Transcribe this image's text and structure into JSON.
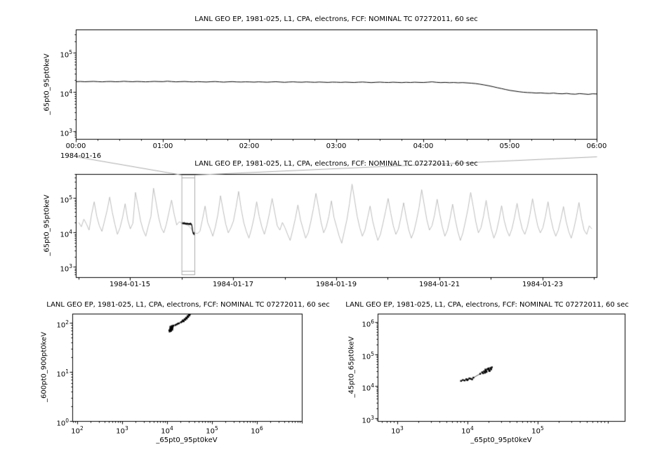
{
  "palette": {
    "background": "#ffffff",
    "series": "#000000",
    "context_series": "#bdbdbd",
    "zoom_overlay": "#aaaaaa",
    "frame": "#000000"
  },
  "chart_data": [
    {
      "id": "top_zoom_timeseries",
      "type": "line",
      "yscale": "log",
      "title": "LANL GEO EP, 1981-025, L1, CPA, electrons, FCF: NOMINAL TC 07272011, 60 sec",
      "ylabel": "_65pt0_95pt0keV",
      "start_date": "1984-01-16",
      "x_unit": "hours",
      "x_start": 0,
      "x_step": 0.05,
      "xlim_hour": [
        0,
        6
      ],
      "x_tick_hours": [
        0,
        1,
        2,
        3,
        4,
        5,
        6
      ],
      "x_tick_labels": [
        "00:00",
        "01:00",
        "02:00",
        "03:00",
        "04:00",
        "05:00",
        "06:00"
      ],
      "ylim_exp": [
        2.8,
        5.6
      ],
      "y_tick_exponents": [
        3,
        4,
        5
      ],
      "values": [
        18800,
        19000,
        18700,
        18900,
        19100,
        18800,
        18600,
        18900,
        19000,
        18700,
        18800,
        19200,
        18900,
        18700,
        19000,
        18800,
        18600,
        18800,
        19100,
        18900,
        18800,
        19300,
        18900,
        18600,
        18800,
        19000,
        18700,
        18500,
        18800,
        18600,
        18400,
        18700,
        18900,
        18600,
        18300,
        18600,
        18800,
        18500,
        18400,
        18600,
        18500,
        18300,
        18600,
        18400,
        18200,
        18500,
        18700,
        18400,
        18100,
        18400,
        18600,
        18300,
        18200,
        18500,
        18300,
        18100,
        18400,
        18200,
        18000,
        18300,
        18200,
        18000,
        18300,
        18100,
        17900,
        18200,
        18400,
        18100,
        17800,
        18100,
        18300,
        18000,
        17900,
        18200,
        18000,
        17800,
        18100,
        17900,
        18200,
        18000,
        17900,
        18200,
        18600,
        18100,
        17800,
        18000,
        17700,
        17900,
        17600,
        17800,
        17500,
        17200,
        16800,
        16200,
        15500,
        14800,
        14000,
        13200,
        12500,
        11800,
        11200,
        10800,
        10400,
        10100,
        9900,
        9800,
        9600,
        9700,
        9500,
        9400,
        9600,
        9300,
        9200,
        9400,
        9100,
        9000,
        9300,
        9100,
        8900,
        9200,
        9100
      ]
    },
    {
      "id": "context_timeseries",
      "type": "line",
      "yscale": "log",
      "title": "LANL GEO EP, 1981-025, L1, CPA, electrons, FCF: NOMINAL TC 07272011, 60 sec",
      "ylabel": "_65pt0_95pt0keV",
      "x_unit": "day of 1984-01",
      "x_start": 14.0,
      "x_step": 0.05,
      "xlim_day": [
        13.95,
        24.05
      ],
      "x_tick_days": [
        15,
        17,
        19,
        21,
        23
      ],
      "x_tick_labels": [
        "1984-01-15",
        "1984-01-17",
        "1984-01-19",
        "1984-01-21",
        "1984-01-23"
      ],
      "ylim_exp": [
        2.7,
        5.7
      ],
      "y_tick_exponents": [
        3,
        4,
        5
      ],
      "highlight_day": [
        16.0,
        16.25
      ],
      "values": [
        20000,
        15000,
        25000,
        18000,
        12000,
        35000,
        80000,
        30000,
        16000,
        11000,
        22000,
        45000,
        110000,
        40000,
        18000,
        9000,
        14000,
        28000,
        70000,
        24000,
        13000,
        19000,
        150000,
        60000,
        22000,
        12000,
        8000,
        16000,
        30000,
        200000,
        75000,
        28000,
        14000,
        10000,
        18000,
        40000,
        90000,
        35000,
        17000,
        21000,
        19000,
        18000,
        17000,
        15000,
        12000,
        10000,
        9500,
        11000,
        25000,
        60000,
        20000,
        13000,
        8000,
        15000,
        35000,
        120000,
        45000,
        18000,
        10000,
        14000,
        22000,
        55000,
        160000,
        50000,
        20000,
        11000,
        7000,
        13000,
        28000,
        80000,
        30000,
        15000,
        9000,
        17000,
        38000,
        100000,
        40000,
        16000,
        12000,
        20000,
        14000,
        9000,
        6000,
        12000,
        26000,
        65000,
        24000,
        13000,
        7000,
        10000,
        21000,
        50000,
        140000,
        55000,
        20000,
        10000,
        15000,
        30000,
        85000,
        28000,
        15000,
        8000,
        5000,
        11000,
        24000,
        70000,
        260000,
        90000,
        30000,
        14000,
        8000,
        12000,
        27000,
        60000,
        22000,
        11000,
        6000,
        9000,
        19000,
        42000,
        100000,
        38000,
        16000,
        9000,
        13000,
        29000,
        75000,
        28000,
        12000,
        7000,
        11000,
        23000,
        55000,
        180000,
        65000,
        24000,
        12000,
        16000,
        33000,
        95000,
        36000,
        15000,
        8000,
        12000,
        26000,
        68000,
        25000,
        11000,
        6000,
        10000,
        22000,
        52000,
        150000,
        58000,
        21000,
        10000,
        14000,
        31000,
        88000,
        30000,
        13000,
        7000,
        11000,
        24000,
        62000,
        23000,
        12000,
        8000,
        13000,
        28000,
        72000,
        27000,
        13000,
        9000,
        15000,
        34000,
        98000,
        37000,
        16000,
        10000,
        14000,
        30000,
        80000,
        28000,
        13000,
        8000,
        12000,
        25000,
        58000,
        22000,
        11000,
        7000,
        13000,
        29000,
        76000,
        26000,
        12000,
        9000,
        16000,
        13000
      ]
    },
    {
      "id": "scatter_600_900_vs_65_95",
      "type": "scatter",
      "xscale": "log",
      "yscale": "log",
      "title": "LANL GEO EP, 1981-025, L1, CPA, electrons, FCF: NOMINAL TC 07272011, 60 sec",
      "xlabel": "_65pt0_95pt0keV",
      "ylabel": "_600pt0_900pt0keV",
      "xlim_exp": [
        1.89,
        7.0
      ],
      "ylim_exp": [
        0,
        2.19
      ],
      "x_tick_exponents": [
        2,
        3,
        4,
        5,
        6
      ],
      "y_tick_exponents": [
        0,
        1,
        2
      ],
      "x": [
        11000,
        11500,
        11200,
        12000,
        11800,
        12300,
        11600,
        12500,
        12200,
        12800,
        11900,
        13000,
        12400,
        12700,
        13500,
        12600,
        13200,
        15000,
        16000,
        17000,
        18000,
        20000,
        21000,
        22000,
        23000,
        22500,
        24000,
        25000,
        24500,
        26000,
        26500,
        27000,
        28000,
        28500,
        29000,
        30000,
        31000,
        32000,
        33000
      ],
      "y": [
        72,
        78,
        68,
        70,
        75,
        82,
        85,
        88,
        79,
        74,
        71,
        80,
        77,
        83,
        90,
        76,
        86,
        92,
        95,
        98,
        100,
        105,
        108,
        115,
        110,
        112,
        120,
        118,
        122,
        130,
        128,
        125,
        140,
        138,
        135,
        150,
        145,
        155,
        160
      ]
    },
    {
      "id": "scatter_45_65_vs_65_95",
      "type": "scatter",
      "xscale": "log",
      "yscale": "log",
      "title": "LANL GEO EP, 1981-025, L1, CPA, electrons, FCF: NOMINAL TC 07272011, 60 sec",
      "xlabel": "_65pt0_95pt0keV",
      "ylabel": "_45pt0_65pt0keV",
      "xlim_exp": [
        2.72,
        6.24
      ],
      "ylim_exp": [
        2.91,
        6.27
      ],
      "x_tick_exponents": [
        3,
        4,
        5
      ],
      "y_tick_exponents": [
        3,
        4,
        5,
        6
      ],
      "x": [
        8000,
        8500,
        9000,
        9500,
        9800,
        10000,
        10500,
        11000,
        11500,
        12000,
        15000,
        16000,
        16500,
        17000,
        17500,
        17800,
        18000,
        18200,
        18500,
        19000,
        19500,
        19800,
        20000,
        20200,
        20500,
        21000,
        21500,
        22000
      ],
      "y": [
        15000,
        16000,
        15500,
        17000,
        15800,
        16500,
        18000,
        17500,
        16800,
        19000,
        25000,
        28000,
        26000,
        30000,
        27000,
        34000,
        32000,
        28500,
        29000,
        35000,
        36000,
        37000,
        33000,
        30500,
        31000,
        38000,
        34500,
        40000
      ]
    }
  ]
}
